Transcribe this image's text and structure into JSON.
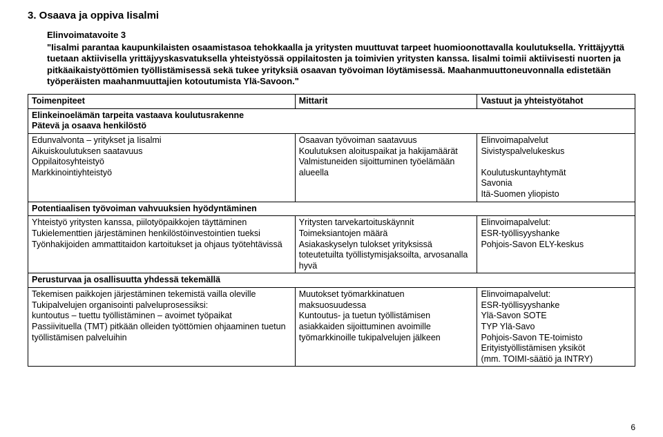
{
  "section_title": "3. Osaava ja oppiva Iisalmi",
  "sub_title": "Elinvoimatavoite 3",
  "intro": "\"Iisalmi parantaa kaupunkilaisten osaamistasoa tehokkaalla ja yritysten muuttuvat tarpeet huomioonottavalla koulutuksella. Yrittäjyyttä tuetaan aktiivisella yrittäjyyskasvatuksella yhteistyössä oppilaitosten ja toimivien yritysten kanssa. Iisalmi toimii aktiivisesti nuorten ja pitkäaikaistyöttömien työllistämisessä sekä tukee yrityksiä osaavan työvoiman löytämisessä. Maahanmuuttoneuvonnalla edistetään työperäisten maahanmuuttajien kotoutumista Ylä-Savoon.\"",
  "headers": {
    "col1": "Toimenpiteet",
    "col2": "Mittarit",
    "col3": "Vastuut ja yhteistyötahot"
  },
  "group1": {
    "header": "Elinkeinoelämän tarpeita vastaava koulutusrakenne\nPätevä ja osaava henkilöstö",
    "c1": "Edunvalvonta – yritykset ja Iisalmi\nAikuiskoulutuksen saatavuus\nOppilaitosyhteistyö\nMarkkinointiyhteistyö",
    "c2": "Osaavan työvoiman saatavuus\nKoulutuksen aloituspaikat ja hakijamäärät\nValmistuneiden sijoittuminen työelämään alueella",
    "c3": "Elinvoimapalvelut\nSivistyspalvelukeskus\n\nKoulutuskuntayhtymät\nSavonia\nItä-Suomen yliopisto"
  },
  "group2": {
    "header": "Potentiaalisen työvoiman vahvuuksien hyödyntäminen",
    "c1": "Yhteistyö yritysten kanssa, piilotyöpaikkojen täyttäminen\nTukielementtien järjestäminen henkilöstöinvestointien tueksi\nTyönhakijoiden ammattitaidon kartoitukset ja ohjaus työtehtävissä",
    "c2": "Yritysten tarvekartoituskäynnit\nToimeksiantojen määrä\nAsiakaskyselyn tulokset yrityksissä toteutetuilta työllistymisjaksoilta, arvosanalla hyvä",
    "c3": "Elinvoimapalvelut:\nESR-työllisyyshanke\nPohjois-Savon ELY-keskus"
  },
  "group3": {
    "header": "Perusturvaa ja osallisuutta yhdessä tekemällä",
    "c1": "Tekemisen paikkojen järjestäminen tekemistä vailla oleville\nTukipalvelujen organisointi palveluprosessiksi:\nkuntoutus – tuettu työllistäminen – avoimet työpaikat\nPassiivituella (TMT) pitkään olleiden työttömien ohjaaminen tuetun työllistämisen palveluihin",
    "c2": "Muutokset työmarkkinatuen maksuosuudessa\nKuntoutus- ja tuetun työllistämisen asiakkaiden sijoittuminen avoimille työmarkkinoille tukipalvelujen jälkeen",
    "c3": "Elinvoimapalvelut:\nESR-työllisyyshanke\nYlä-Savon SOTE\nTYP Ylä-Savo\nPohjois-Savon TE-toimisto\nErityistyöllistämisen yksiköt\n(mm. TOIMI-säätiö ja INTRY)"
  },
  "page_number": "6"
}
